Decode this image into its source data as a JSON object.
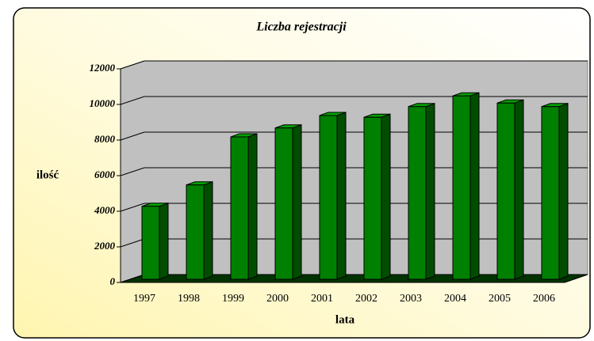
{
  "chart_data": {
    "type": "bar3d",
    "title": "Liczba  rejestracji",
    "x_label": "lata",
    "y_label": "ilość",
    "categories": [
      "1997",
      "1998",
      "1999",
      "2000",
      "2001",
      "2002",
      "2003",
      "2004",
      "2005",
      "2006"
    ],
    "values": [
      4100,
      5300,
      8000,
      8500,
      9200,
      9100,
      9700,
      10300,
      9900,
      9700
    ],
    "color": "#008000",
    "ylim": [
      0,
      12000
    ],
    "yticks": [
      0,
      2000,
      4000,
      6000,
      8000,
      10000,
      12000
    ],
    "grid": true
  }
}
